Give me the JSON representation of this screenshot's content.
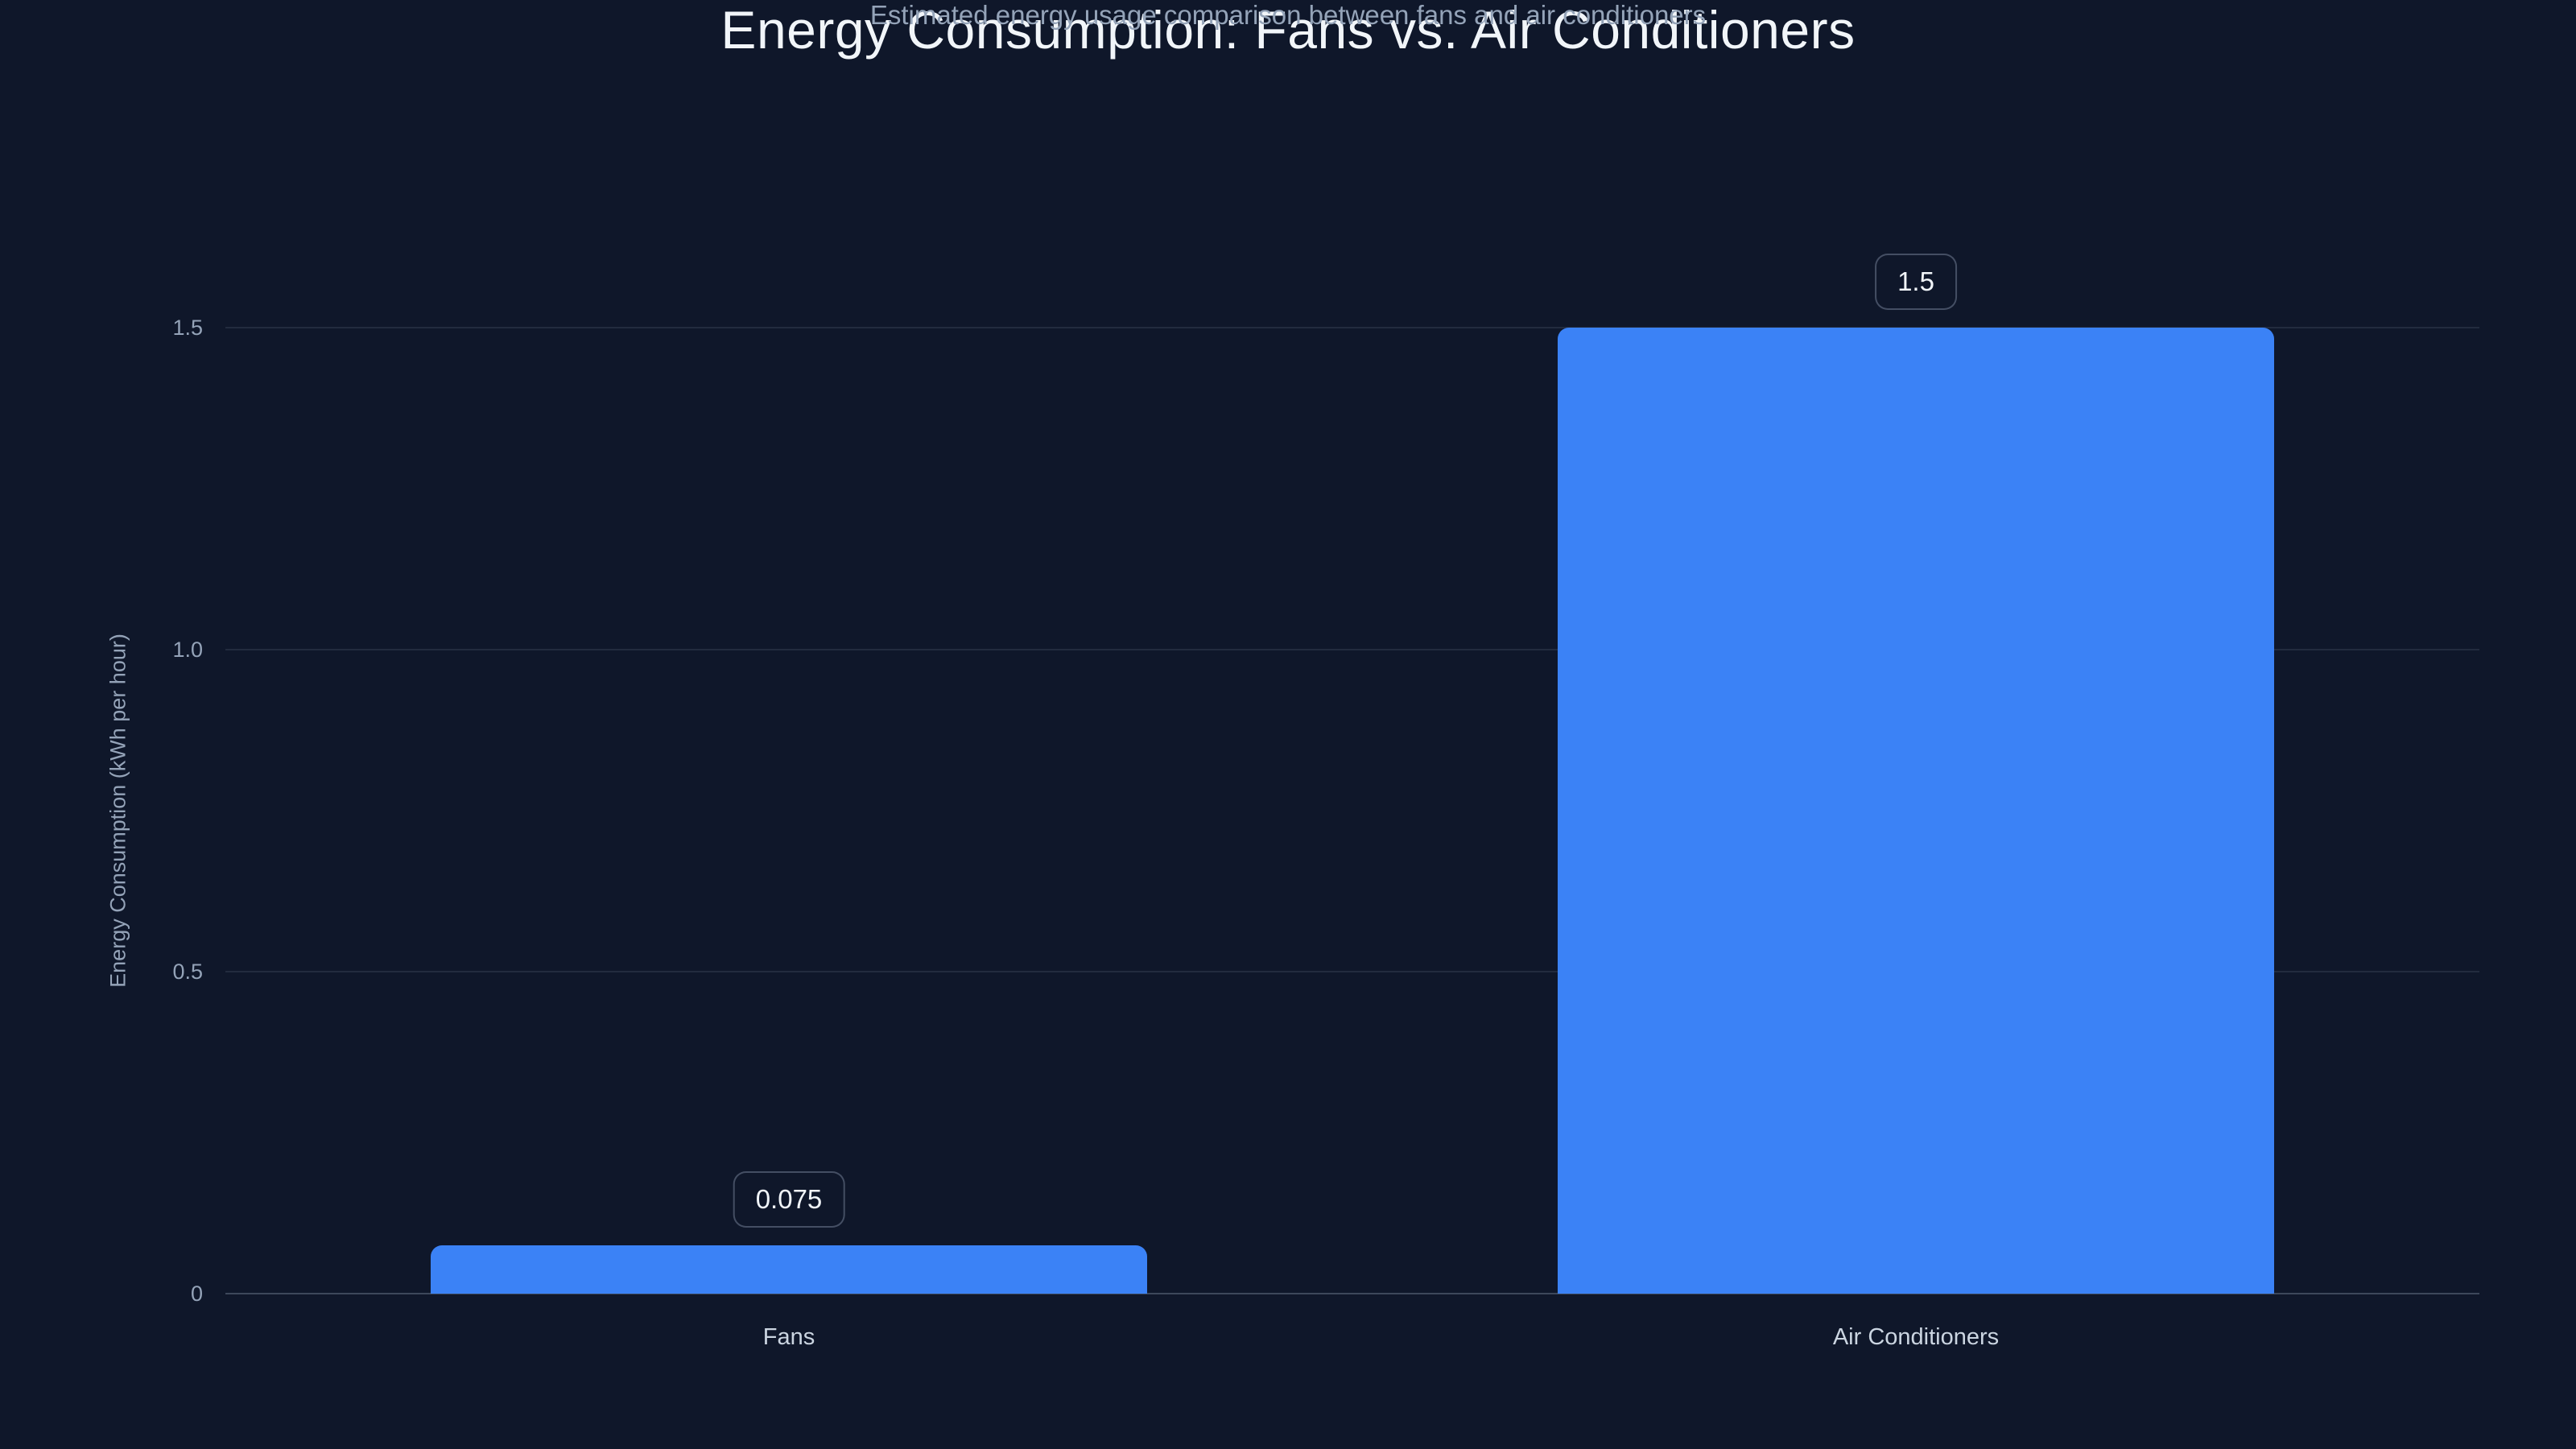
{
  "chart_data": {
    "type": "bar",
    "title": "Energy Consumption: Fans vs. Air Conditioners",
    "subtitle": "Estimated energy usage comparison between fans and air conditioners",
    "categories": [
      "Fans",
      "Air Conditioners"
    ],
    "values": [
      0.075,
      1.5
    ],
    "value_labels": [
      "0.075",
      "1.5"
    ],
    "xlabel": "",
    "ylabel": "Energy Consumption (kWh per hour)",
    "ylim": [
      0,
      1.5
    ],
    "yticks": [
      {
        "value": 0,
        "label": "0"
      },
      {
        "value": 0.5,
        "label": "0.5"
      },
      {
        "value": 1.0,
        "label": "1.0"
      },
      {
        "value": 1.5,
        "label": "1.5"
      }
    ],
    "grid": "horizontal-solid",
    "legend_position": "none",
    "colors": {
      "background": "#0f172a",
      "bar": "#3b82f6",
      "title_text": "#f1f5f9",
      "subtitle_text": "#94a3b8",
      "tick_text": "#94a3b8",
      "axis_label_text": "#94a3b8",
      "category_text": "#cbd5e1",
      "gridline": "rgba(148,163,184,0.15)",
      "baseline": "rgba(148,163,184,0.35)",
      "chip_border": "rgba(148,163,184,0.4)",
      "chip_text": "#f1f5f9"
    }
  }
}
